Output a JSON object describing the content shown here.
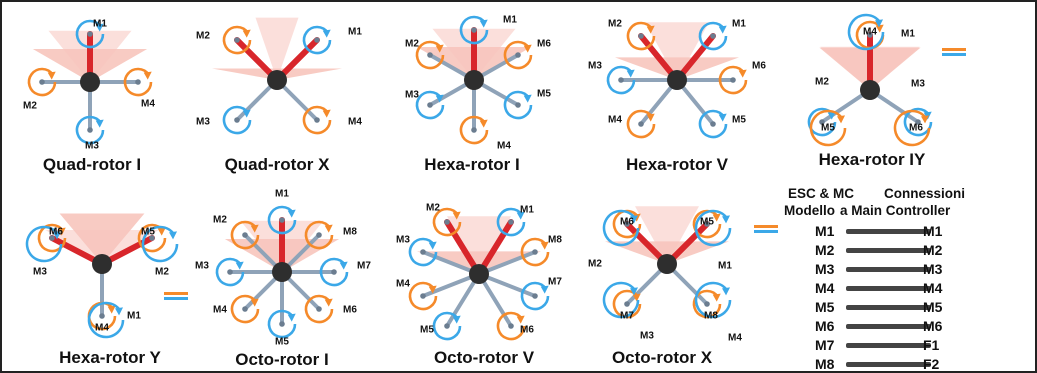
{
  "colors": {
    "cw": "#f58a2a",
    "ccw": "#3ba8e8",
    "front_arm": "#d8262b",
    "arm": "#8fa3b8",
    "body": "#2e2e2e",
    "cone": "#f7c5bd"
  },
  "configs": [
    {
      "id": "quad-i",
      "title": "Quad-rotor I",
      "motors": [
        {
          "label": "M1",
          "dir": "ccw"
        },
        {
          "label": "M2",
          "dir": "cw"
        },
        {
          "label": "M3",
          "dir": "ccw"
        },
        {
          "label": "M4",
          "dir": "cw"
        }
      ]
    },
    {
      "id": "quad-x",
      "title": "Quad-rotor X",
      "motors": [
        {
          "label": "M1",
          "dir": "ccw"
        },
        {
          "label": "M2",
          "dir": "cw"
        },
        {
          "label": "M3",
          "dir": "ccw"
        },
        {
          "label": "M4",
          "dir": "cw"
        }
      ]
    },
    {
      "id": "hexa-i",
      "title": "Hexa-rotor I",
      "motors": [
        {
          "label": "M1",
          "dir": "ccw"
        },
        {
          "label": "M2",
          "dir": "cw"
        },
        {
          "label": "M3",
          "dir": "ccw"
        },
        {
          "label": "M4",
          "dir": "cw"
        },
        {
          "label": "M5",
          "dir": "ccw"
        },
        {
          "label": "M6",
          "dir": "cw"
        }
      ]
    },
    {
      "id": "hexa-v",
      "title": "Hexa-rotor V",
      "motors": [
        {
          "label": "M1",
          "dir": "ccw"
        },
        {
          "label": "M2",
          "dir": "cw"
        },
        {
          "label": "M3",
          "dir": "ccw"
        },
        {
          "label": "M4",
          "dir": "cw"
        },
        {
          "label": "M5",
          "dir": "ccw"
        },
        {
          "label": "M6",
          "dir": "cw"
        }
      ]
    },
    {
      "id": "hexa-iy",
      "title": "Hexa-rotor IY",
      "motors": [
        {
          "label": "M4",
          "dir": "cw"
        },
        {
          "label": "M1",
          "dir": "ccw"
        },
        {
          "label": "M2",
          "dir": "ccw"
        },
        {
          "label": "M5",
          "dir": "cw"
        },
        {
          "label": "M3",
          "dir": "ccw"
        },
        {
          "label": "M6",
          "dir": "cw"
        }
      ]
    },
    {
      "id": "hexa-y",
      "title": "Hexa-rotor Y",
      "motors": [
        {
          "label": "M6",
          "dir": "cw"
        },
        {
          "label": "M3",
          "dir": "ccw"
        },
        {
          "label": "M5",
          "dir": "cw"
        },
        {
          "label": "M2",
          "dir": "ccw"
        },
        {
          "label": "M4",
          "dir": "cw"
        },
        {
          "label": "M1",
          "dir": "ccw"
        }
      ]
    },
    {
      "id": "octo-i",
      "title": "Octo-rotor I",
      "motors": [
        {
          "label": "M1",
          "dir": "ccw"
        },
        {
          "label": "M2",
          "dir": "cw"
        },
        {
          "label": "M3",
          "dir": "ccw"
        },
        {
          "label": "M4",
          "dir": "cw"
        },
        {
          "label": "M5",
          "dir": "ccw"
        },
        {
          "label": "M6",
          "dir": "cw"
        },
        {
          "label": "M7",
          "dir": "ccw"
        },
        {
          "label": "M8",
          "dir": "cw"
        }
      ]
    },
    {
      "id": "octo-v",
      "title": "Octo-rotor V",
      "motors": [
        {
          "label": "M1",
          "dir": "ccw"
        },
        {
          "label": "M2",
          "dir": "cw"
        },
        {
          "label": "M3",
          "dir": "ccw"
        },
        {
          "label": "M4",
          "dir": "cw"
        },
        {
          "label": "M5",
          "dir": "ccw"
        },
        {
          "label": "M6",
          "dir": "cw"
        },
        {
          "label": "M7",
          "dir": "ccw"
        },
        {
          "label": "M8",
          "dir": "cw"
        }
      ]
    },
    {
      "id": "octo-x",
      "title": "Octo-rotor X",
      "motors": [
        {
          "label": "M6",
          "dir": "cw"
        },
        {
          "label": "M2",
          "dir": "ccw"
        },
        {
          "label": "M5",
          "dir": "cw"
        },
        {
          "label": "M1",
          "dir": "ccw"
        },
        {
          "label": "M7",
          "dir": "cw"
        },
        {
          "label": "M3",
          "dir": "ccw"
        },
        {
          "label": "M8",
          "dir": "cw"
        },
        {
          "label": "M4",
          "dir": "ccw"
        }
      ]
    }
  ],
  "esc_table": {
    "header_line1_left": "ESC & MC",
    "header_line1_right": "Connessioni",
    "header_line2_left": "Modello",
    "header_line2_right": "a Main Controller",
    "rows": [
      {
        "model": "M1",
        "controller": "M1"
      },
      {
        "model": "M2",
        "controller": "M2"
      },
      {
        "model": "M3",
        "controller": "M3"
      },
      {
        "model": "M4",
        "controller": "M4"
      },
      {
        "model": "M5",
        "controller": "M5"
      },
      {
        "model": "M6",
        "controller": "M6"
      },
      {
        "model": "M7",
        "controller": "F1"
      },
      {
        "model": "M8",
        "controller": "F2"
      }
    ]
  }
}
